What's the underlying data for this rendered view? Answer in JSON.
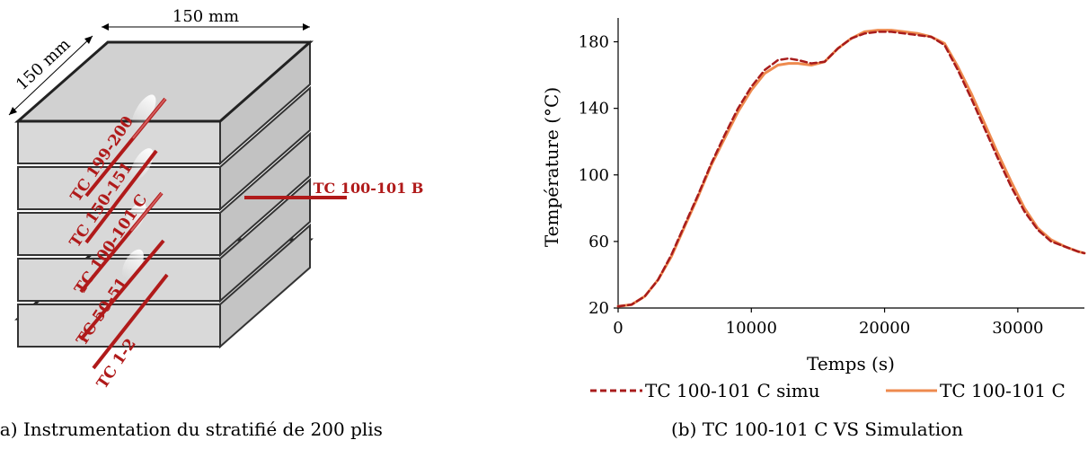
{
  "figure_a": {
    "dim_width": "150 mm",
    "dim_depth": "150 mm",
    "thermocouples": [
      "TC 199-200",
      "TC 150-151",
      "TC 100-101 C",
      "TC 50-51",
      "TC 1-2"
    ],
    "external_label": "TC 100-101 B",
    "caption": "(a) Instrumentation du stratifié de 200 plis"
  },
  "figure_b": {
    "caption": "(b) TC 100-101 C VS Simulation"
  },
  "colors": {
    "thermocouple": "#b01a1a",
    "simu": "#a81c1c",
    "measured": "#ee8a4e",
    "plate_side": "#c2c2c2",
    "plate_front": "#d8d8d8"
  },
  "chart_data": {
    "type": "line",
    "title": "",
    "xlabel": "Temps (s)",
    "ylabel": "Température (°C)",
    "xlim": [
      0,
      35000
    ],
    "ylim": [
      20,
      190
    ],
    "xticks": [
      0,
      10000,
      20000,
      30000
    ],
    "yticks": [
      20,
      60,
      100,
      140,
      180
    ],
    "grid": false,
    "legend": "bottom",
    "series": [
      {
        "name": "TC 100-101 C simu",
        "style": "dashed",
        "color": "#a81c1c",
        "x": [
          0,
          1000,
          2000,
          3000,
          4000,
          5000,
          6000,
          7000,
          8000,
          9000,
          10000,
          11000,
          12000,
          12800,
          13500,
          14500,
          15500,
          16500,
          17500,
          18500,
          19500,
          20500,
          21500,
          22500,
          23500,
          24500,
          25500,
          26500,
          27500,
          28500,
          29500,
          30500,
          31500,
          32500,
          33500,
          34500,
          35000
        ],
        "values": [
          21,
          22,
          27,
          37,
          52,
          70,
          88,
          107,
          124,
          140,
          153,
          163,
          169,
          170,
          169,
          167,
          168,
          176,
          182,
          185,
          186,
          186,
          185,
          184,
          183,
          178,
          163,
          146,
          128,
          110,
          93,
          78,
          67,
          60,
          57,
          54,
          53
        ]
      },
      {
        "name": "TC 100-101 C",
        "style": "solid",
        "color": "#ee8a4e",
        "x": [
          0,
          1000,
          2000,
          3000,
          4000,
          5000,
          6000,
          7000,
          8000,
          9000,
          10000,
          11000,
          12000,
          12800,
          13500,
          14500,
          15500,
          16500,
          17500,
          18500,
          19500,
          20500,
          21500,
          22500,
          23500,
          24500,
          25500,
          26500,
          27500,
          28500,
          29500,
          30500,
          31500,
          32500,
          33500,
          34500,
          35000
        ],
        "values": [
          21,
          22,
          27,
          37,
          51,
          69,
          87,
          106,
          122,
          138,
          151,
          161,
          166,
          167,
          167,
          166,
          168,
          176,
          182,
          186,
          187,
          187,
          186,
          185,
          183,
          179,
          165,
          149,
          131,
          113,
          96,
          80,
          68,
          61,
          57,
          54,
          53
        ]
      }
    ]
  }
}
